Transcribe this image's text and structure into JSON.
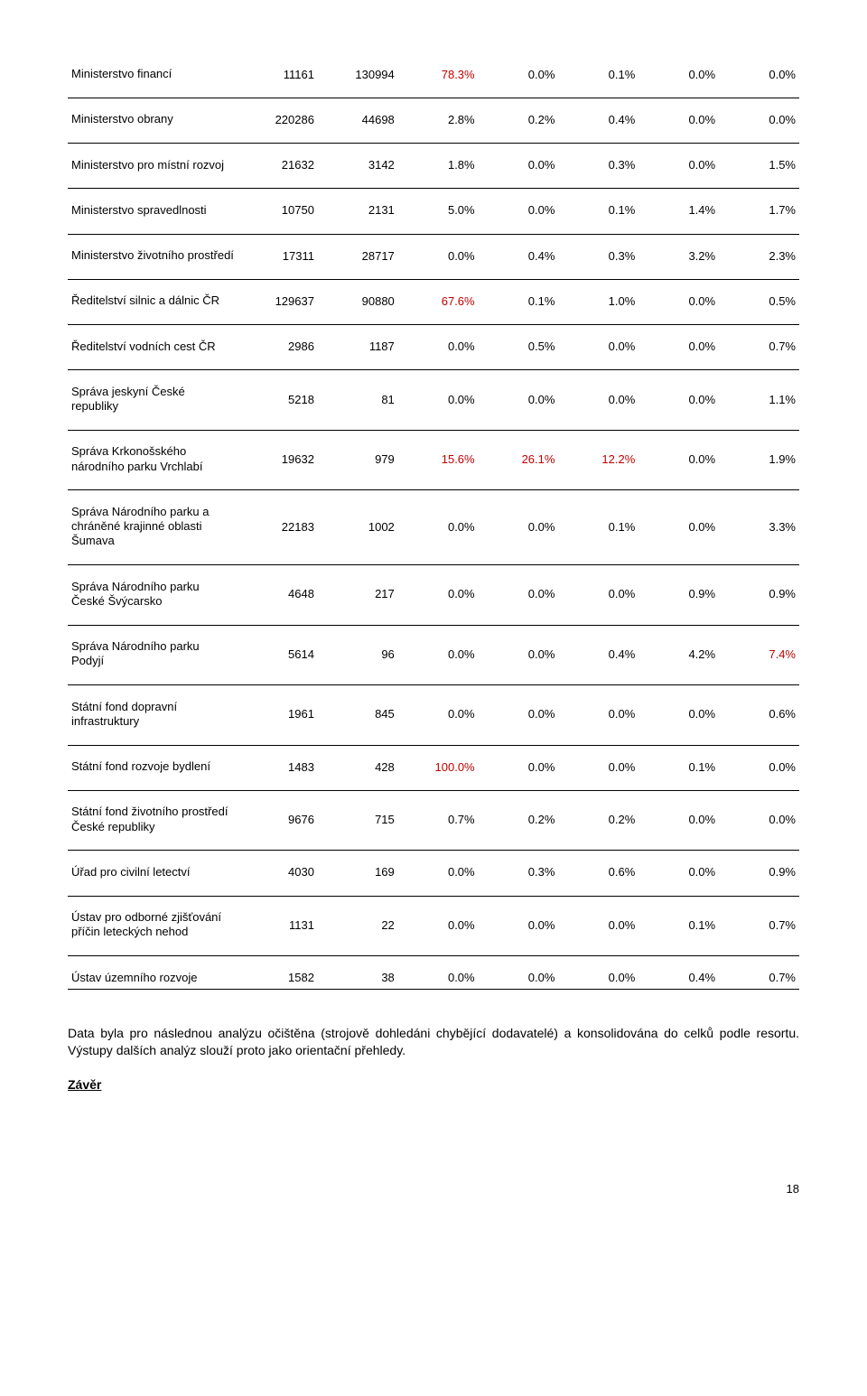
{
  "highlight_color": "#c00000",
  "table": {
    "rows": [
      {
        "label": "Ministerstvo financí",
        "v1": "11161",
        "v2": "130994",
        "p1": "78.3%",
        "p2": "0.0%",
        "p3": "0.1%",
        "p4": "0.0%",
        "p5": "0.0%",
        "highlight": [
          "p1"
        ]
      },
      {
        "label": "Ministerstvo obrany",
        "v1": "220286",
        "v2": "44698",
        "p1": "2.8%",
        "p2": "0.2%",
        "p3": "0.4%",
        "p4": "0.0%",
        "p5": "0.0%",
        "highlight": []
      },
      {
        "label": "Ministerstvo pro místní rozvoj",
        "v1": "21632",
        "v2": "3142",
        "p1": "1.8%",
        "p2": "0.0%",
        "p3": "0.3%",
        "p4": "0.0%",
        "p5": "1.5%",
        "highlight": []
      },
      {
        "label": "Ministerstvo spravedlnosti",
        "v1": "10750",
        "v2": "2131",
        "p1": "5.0%",
        "p2": "0.0%",
        "p3": "0.1%",
        "p4": "1.4%",
        "p5": "1.7%",
        "highlight": []
      },
      {
        "label": "Ministerstvo životního prostředí",
        "v1": "17311",
        "v2": "28717",
        "p1": "0.0%",
        "p2": "0.4%",
        "p3": "0.3%",
        "p4": "3.2%",
        "p5": "2.3%",
        "highlight": []
      },
      {
        "label": "Ředitelství silnic a dálnic ČR",
        "v1": "129637",
        "v2": "90880",
        "p1": "67.6%",
        "p2": "0.1%",
        "p3": "1.0%",
        "p4": "0.0%",
        "p5": "0.5%",
        "highlight": [
          "p1"
        ]
      },
      {
        "label": "Ředitelství vodních cest ČR",
        "v1": "2986",
        "v2": "1187",
        "p1": "0.0%",
        "p2": "0.5%",
        "p3": "0.0%",
        "p4": "0.0%",
        "p5": "0.7%",
        "highlight": []
      },
      {
        "label": "Správa jeskyní České republiky",
        "v1": "5218",
        "v2": "81",
        "p1": "0.0%",
        "p2": "0.0%",
        "p3": "0.0%",
        "p4": "0.0%",
        "p5": "1.1%",
        "highlight": []
      },
      {
        "label": "Správa Krkonošského národního parku Vrchlabí",
        "v1": "19632",
        "v2": "979",
        "p1": "15.6%",
        "p2": "26.1%",
        "p3": "12.2%",
        "p4": "0.0%",
        "p5": "1.9%",
        "highlight": [
          "p1",
          "p2",
          "p3"
        ]
      },
      {
        "label": "Správa Národního parku a chráněné krajinné oblasti Šumava",
        "v1": "22183",
        "v2": "1002",
        "p1": "0.0%",
        "p2": "0.0%",
        "p3": "0.1%",
        "p4": "0.0%",
        "p5": "3.3%",
        "highlight": []
      },
      {
        "label": "Správa Národního parku České Švýcarsko",
        "v1": "4648",
        "v2": "217",
        "p1": "0.0%",
        "p2": "0.0%",
        "p3": "0.0%",
        "p4": "0.9%",
        "p5": "0.9%",
        "highlight": []
      },
      {
        "label": "Správa Národního parku Podyjí",
        "v1": "5614",
        "v2": "96",
        "p1": "0.0%",
        "p2": "0.0%",
        "p3": "0.4%",
        "p4": "4.2%",
        "p5": "7.4%",
        "highlight": [
          "p5"
        ]
      },
      {
        "label": "Státní fond dopravní infrastruktury",
        "v1": "1961",
        "v2": "845",
        "p1": "0.0%",
        "p2": "0.0%",
        "p3": "0.0%",
        "p4": "0.0%",
        "p5": "0.6%",
        "highlight": []
      },
      {
        "label": "Státní fond rozvoje bydlení",
        "v1": "1483",
        "v2": "428",
        "p1": "100.0%",
        "p2": "0.0%",
        "p3": "0.0%",
        "p4": "0.1%",
        "p5": "0.0%",
        "highlight": [
          "p1"
        ]
      },
      {
        "label": "Státní fond životního prostředí České republiky",
        "v1": "9676",
        "v2": "715",
        "p1": "0.7%",
        "p2": "0.2%",
        "p3": "0.2%",
        "p4": "0.0%",
        "p5": "0.0%",
        "highlight": []
      },
      {
        "label": "Úřad pro civilní letectví",
        "v1": "4030",
        "v2": "169",
        "p1": "0.0%",
        "p2": "0.3%",
        "p3": "0.6%",
        "p4": "0.0%",
        "p5": "0.9%",
        "highlight": []
      },
      {
        "label": "Ústav pro odborné zjišťování příčin leteckých nehod",
        "v1": "1131",
        "v2": "22",
        "p1": "0.0%",
        "p2": "0.0%",
        "p3": "0.0%",
        "p4": "0.1%",
        "p5": "0.7%",
        "highlight": []
      },
      {
        "label": "Ústav územního rozvoje",
        "v1": "1582",
        "v2": "38",
        "p1": "0.0%",
        "p2": "0.0%",
        "p3": "0.0%",
        "p4": "0.4%",
        "p5": "0.7%",
        "highlight": []
      }
    ]
  },
  "paragraph": "Data byla pro následnou analýzu očištěna (strojově dohledáni chybějící dodavatelé) a konsolidována do celků podle resortu. Výstupy dalších analýz slouží proto jako orientační přehledy.",
  "heading": "Závěr",
  "page_number": "18"
}
